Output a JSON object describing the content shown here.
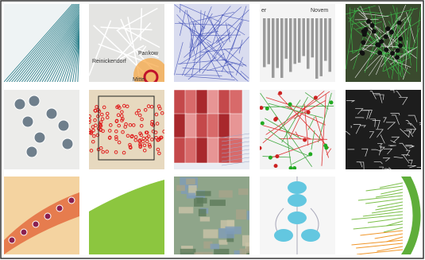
{
  "map_labels": [
    "Pankow",
    "Reinickendorf",
    "Mitte"
  ],
  "timeline_labels": [
    "er",
    "Novem"
  ]
}
